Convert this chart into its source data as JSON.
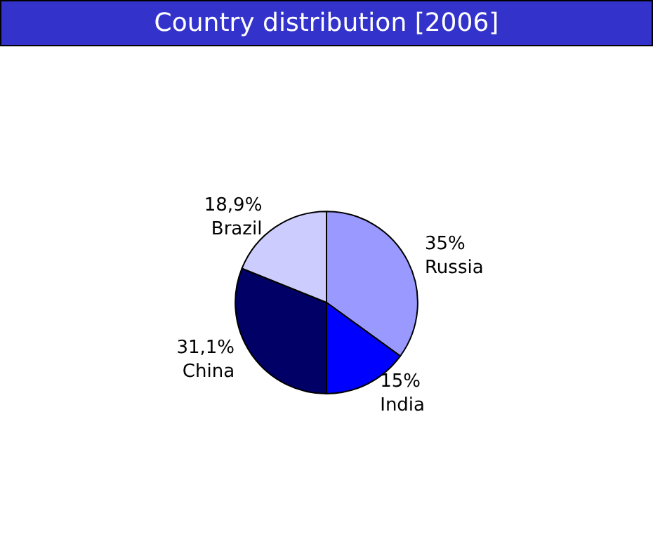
{
  "chart_data": {
    "type": "pie",
    "title": "Country distribution [2006]",
    "categories": [
      "Russia",
      "India",
      "China",
      "Brazil"
    ],
    "values": [
      35,
      15,
      31.1,
      18.9
    ],
    "value_labels": [
      "35%",
      "15%",
      "31,1%",
      "18,9%"
    ],
    "colors": [
      "#9999ff",
      "#0000ff",
      "#000066",
      "#ccccff"
    ],
    "legend": false
  }
}
